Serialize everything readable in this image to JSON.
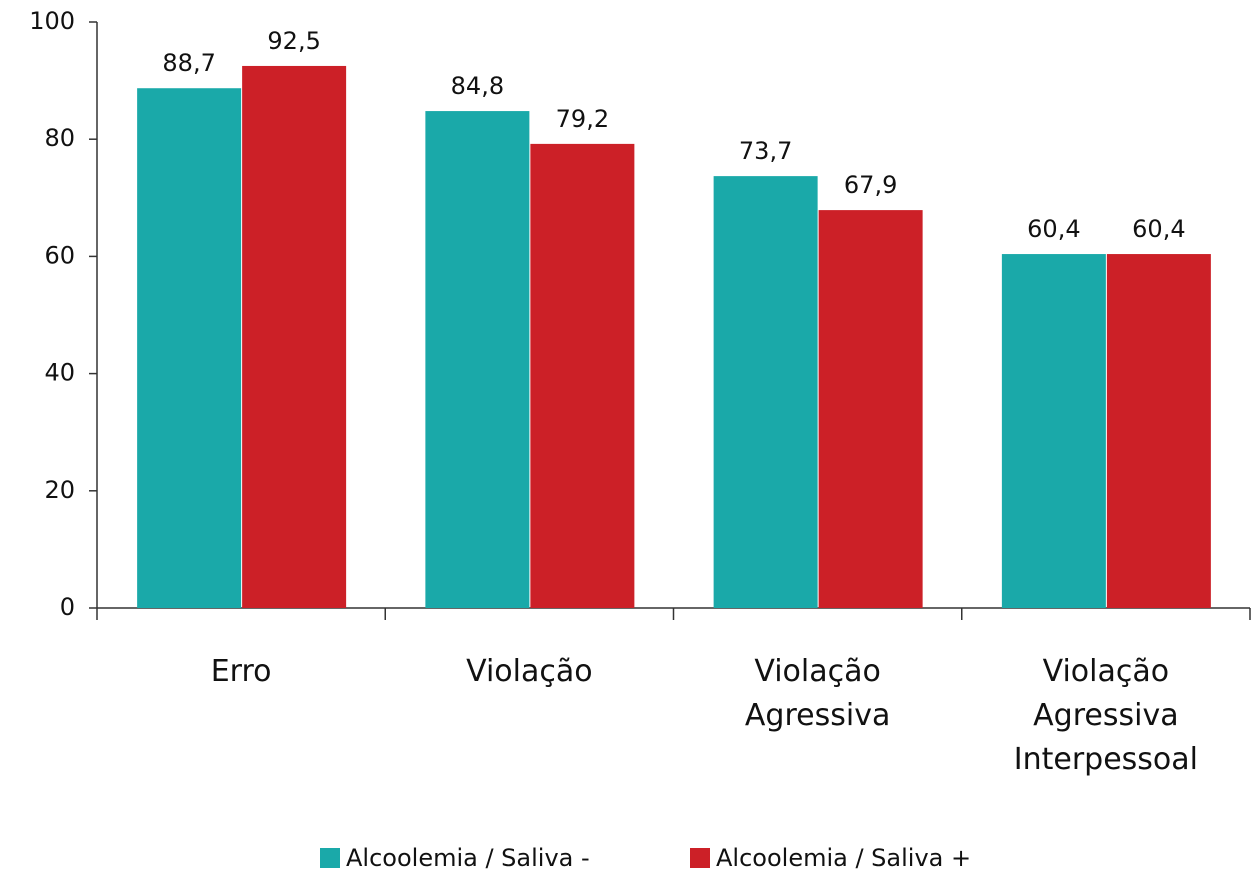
{
  "chart_data": {
    "type": "bar",
    "categories": [
      "Erro",
      "Violação",
      "Violação\nAgressiva",
      "Violação\nAgressiva\nInterpessoal"
    ],
    "series": [
      {
        "name": "Alcoolemia / Saliva -",
        "color": "#1aa9a9",
        "values": [
          88.7,
          84.8,
          73.7,
          60.4
        ],
        "value_labels": [
          "88,7",
          "84,8",
          "73,7",
          "60,4"
        ]
      },
      {
        "name": "Alcoolemia / Saliva +",
        "color": "#cc2027",
        "values": [
          92.5,
          79.2,
          67.9,
          60.4
        ],
        "value_labels": [
          "92,5",
          "79,2",
          "67,9",
          "60,4"
        ]
      }
    ],
    "ylim": [
      0,
      100
    ],
    "yticks": [
      0,
      20,
      40,
      60,
      80,
      100
    ],
    "grid": false,
    "legend": "bottom"
  }
}
